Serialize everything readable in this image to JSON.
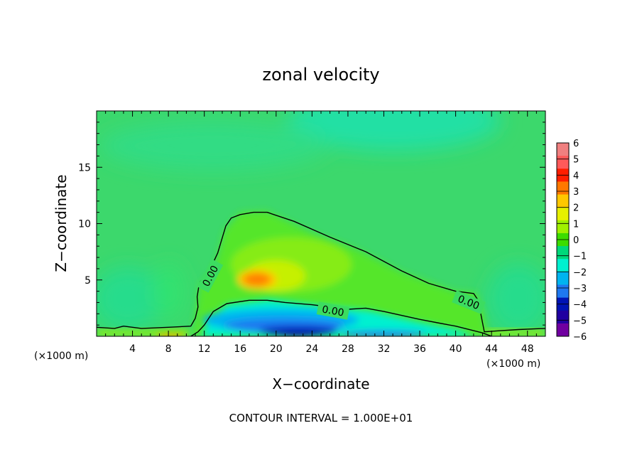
{
  "chart_data": {
    "type": "heatmap",
    "title": "zonal velocity",
    "xlabel": "X−coordinate",
    "ylabel": "Z−coordinate",
    "x_unit": "(×1000 m)",
    "x_unit_right": "(×1000 m)",
    "footer": "CONTOUR INTERVAL = 1.000E+01",
    "xlim": [
      0,
      50
    ],
    "ylim": [
      0,
      20
    ],
    "x_ticks": [
      4,
      8,
      12,
      16,
      20,
      24,
      28,
      32,
      36,
      40,
      44,
      48
    ],
    "x_tick_labels": [
      "4",
      "8",
      "12",
      "16",
      "20",
      "24",
      "28",
      "32",
      "36",
      "40",
      "44",
      "48"
    ],
    "y_ticks": [
      5,
      10,
      15
    ],
    "y_tick_labels": [
      "5",
      "10",
      "15"
    ],
    "colorbar": {
      "levels": [
        6,
        5,
        4,
        3,
        2,
        1,
        0,
        -1,
        -2,
        -3,
        -4,
        -5,
        -6
      ],
      "labels": [
        "6",
        "5",
        "4",
        "3",
        "2",
        "1",
        "0",
        "−1",
        "−2",
        "−3",
        "−4",
        "−5",
        "−6"
      ],
      "colors": [
        "#f08080",
        "#ff5a5a",
        "#ff1e00",
        "#ff7800",
        "#ffc800",
        "#e6f000",
        "#a0f000",
        "#3cdc00",
        "#00d87a",
        "#00f0d0",
        "#00b4f0",
        "#1e78f0",
        "#0014b4",
        "#2000a0",
        "#7000a0"
      ]
    },
    "background_value_color": "#3cd86c",
    "contours": [
      {
        "label": "0.00",
        "value": 0,
        "points": [
          [
            0,
            0.8
          ],
          [
            2,
            0.7
          ],
          [
            3,
            0.9
          ],
          [
            5,
            0.7
          ],
          [
            8,
            0.8
          ],
          [
            10.5,
            0.9
          ],
          [
            11,
            1.6
          ],
          [
            11.3,
            2.6
          ],
          [
            11.2,
            3.5
          ],
          [
            11.4,
            4.5
          ],
          [
            11.6,
            4.9
          ],
          [
            12,
            5.3
          ],
          [
            12.8,
            6.2
          ],
          [
            13.5,
            7.4
          ],
          [
            14.4,
            9.8
          ],
          [
            15,
            10.5
          ],
          [
            16,
            10.8
          ],
          [
            17.5,
            11
          ],
          [
            19,
            11
          ],
          [
            22,
            10.2
          ],
          [
            26,
            8.8
          ],
          [
            30,
            7.5
          ],
          [
            34,
            5.8
          ],
          [
            37,
            4.7
          ],
          [
            40,
            4.0
          ],
          [
            42,
            3.8
          ],
          [
            42.5,
            3.2
          ],
          [
            43.2,
            0.4
          ],
          [
            45,
            0.5
          ],
          [
            47,
            0.6
          ],
          [
            50,
            0.7
          ]
        ]
      },
      {
        "label": "0.00",
        "value": 0,
        "points": [
          [
            10.5,
            0
          ],
          [
            11.3,
            0.4
          ],
          [
            12,
            1.0
          ],
          [
            13,
            2.2
          ],
          [
            14.5,
            2.9
          ],
          [
            17,
            3.2
          ],
          [
            19,
            3.2
          ],
          [
            21,
            3.0
          ],
          [
            24,
            2.8
          ],
          [
            28,
            2.4
          ],
          [
            30,
            2.5
          ],
          [
            32,
            2.2
          ],
          [
            36,
            1.5
          ],
          [
            38,
            1.2
          ],
          [
            40,
            0.9
          ],
          [
            43,
            0.3
          ],
          [
            44,
            0
          ]
        ]
      }
    ],
    "features": [
      {
        "name": "positive maximum",
        "x": 17.8,
        "z": 5.0,
        "value": 3.5
      },
      {
        "name": "negative minimum",
        "x": 22,
        "z": 0.6,
        "value": -5
      }
    ]
  }
}
